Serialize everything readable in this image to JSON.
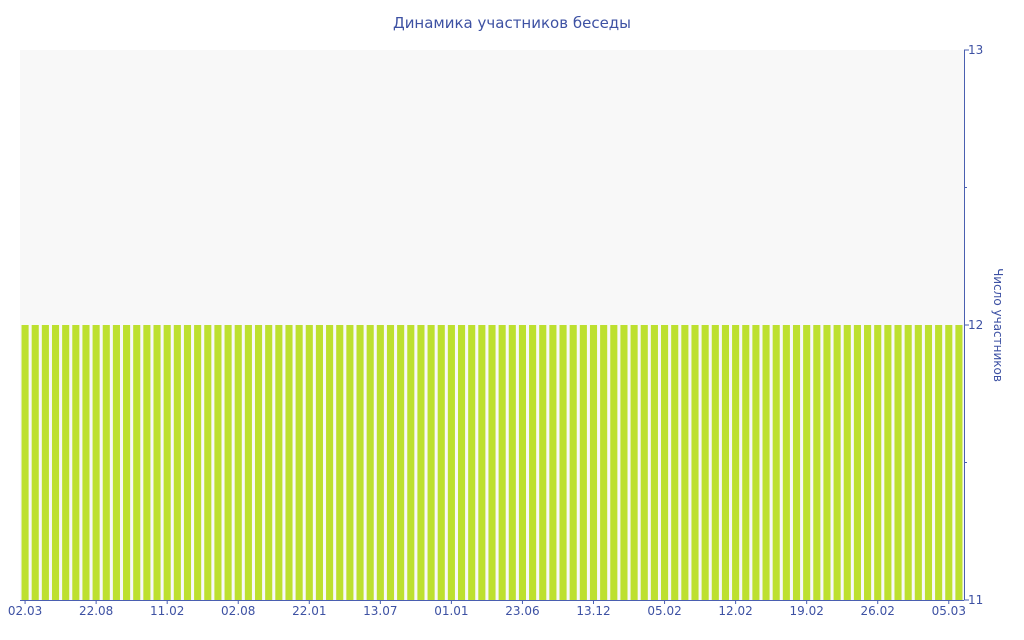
{
  "chart_data": {
    "type": "bar",
    "title": "Динамика участников беседы",
    "ylabel": "Число участников",
    "xlabel": "",
    "ylim": [
      11,
      13
    ],
    "yticks": [
      11,
      12,
      13
    ],
    "y_axis_side": "right",
    "grid": false,
    "bar_count": 93,
    "values": [
      12,
      12,
      12,
      12,
      12,
      12,
      12,
      12,
      12,
      12,
      12,
      12,
      12,
      12,
      12,
      12,
      12,
      12,
      12,
      12,
      12,
      12,
      12,
      12,
      12,
      12,
      12,
      12,
      12,
      12,
      12,
      12,
      12,
      12,
      12,
      12,
      12,
      12,
      12,
      12,
      12,
      12,
      12,
      12,
      12,
      12,
      12,
      12,
      12,
      12,
      12,
      12,
      12,
      12,
      12,
      12,
      12,
      12,
      12,
      12,
      12,
      12,
      12,
      12,
      12,
      12,
      12,
      12,
      12,
      12,
      12,
      12,
      12,
      12,
      12,
      12,
      12,
      12,
      12,
      12,
      12,
      12,
      12,
      12,
      12,
      12,
      12,
      12,
      12,
      12,
      12,
      12,
      12
    ],
    "x_tick_every": 7,
    "x_tick_labels": [
      "02.03",
      "22.08",
      "11.02",
      "02.08",
      "22.01",
      "13.07",
      "01.01",
      "23.06",
      "13.12",
      "05.02",
      "12.02",
      "19.02",
      "26.02",
      "05.03"
    ],
    "colors": {
      "bar": "#bde02f",
      "plot_bg": "#f8f8f8",
      "axis": "#4a5fb0",
      "text": "#3d51a3"
    }
  }
}
